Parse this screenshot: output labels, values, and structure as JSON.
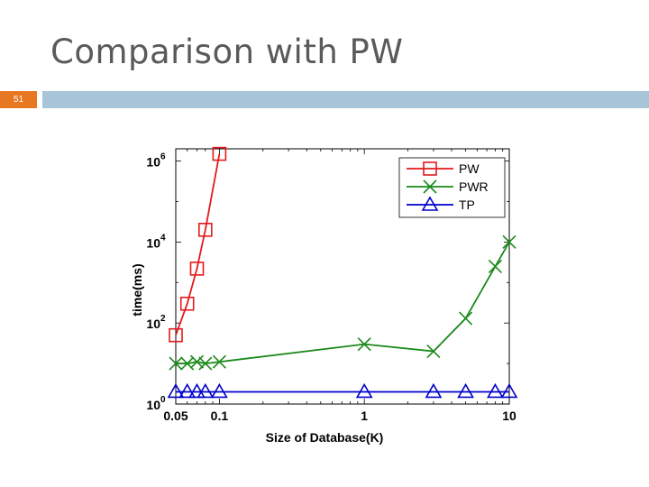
{
  "slide": {
    "title": "Comparison with PW",
    "number": "51"
  },
  "colors": {
    "accent": "#e87722",
    "header_bar": "#a7c4d9",
    "PW": "#e31a1c",
    "PWR": "#1a8a1a",
    "TP": "#0000cc"
  },
  "chart_data": {
    "type": "line",
    "xscale": "log",
    "yscale": "log",
    "xlim": [
      0.05,
      10
    ],
    "ylim": [
      1,
      2000000
    ],
    "xlabel": "Size of Database(K)",
    "ylabel": "time(ms)",
    "xticks": [
      "0.05",
      "0.1",
      "1",
      "10"
    ],
    "yticks": [
      {
        "base": "10",
        "exp": "0"
      },
      {
        "base": "10",
        "exp": "2"
      },
      {
        "base": "10",
        "exp": "4"
      },
      {
        "base": "10",
        "exp": "6"
      }
    ],
    "legend_position": "top-right",
    "series": [
      {
        "name": "PW",
        "marker": "square",
        "x": [
          0.05,
          0.06,
          0.07,
          0.08,
          0.1
        ],
        "y": [
          50,
          300,
          2200,
          20000,
          1500000
        ]
      },
      {
        "name": "PWR",
        "marker": "x",
        "x": [
          0.05,
          0.06,
          0.07,
          0.08,
          0.1,
          1,
          3,
          5,
          8,
          10
        ],
        "y": [
          10,
          10,
          11,
          10,
          11,
          30,
          20,
          130,
          2500,
          10000
        ]
      },
      {
        "name": "TP",
        "marker": "triangle",
        "x": [
          0.05,
          0.06,
          0.07,
          0.08,
          0.1,
          1,
          3,
          5,
          8,
          10
        ],
        "y": [
          2,
          2,
          2,
          2,
          2,
          2,
          2,
          2,
          2,
          2
        ]
      }
    ]
  }
}
